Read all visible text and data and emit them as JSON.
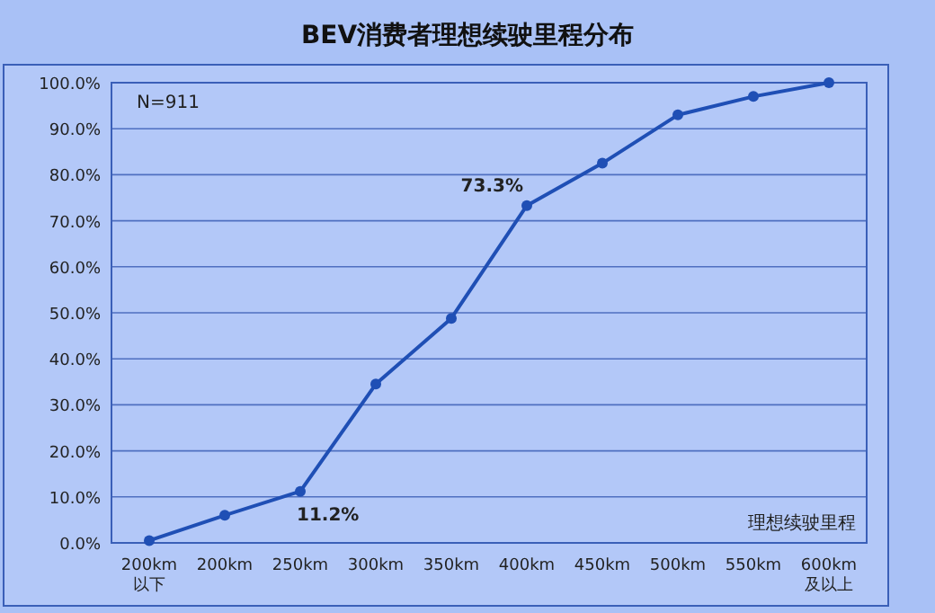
{
  "chart_data": {
    "type": "line",
    "title": "BEV消费者理想续驶里程分布",
    "xlabel": "理想续驶里程",
    "annotations": [
      "N=911"
    ],
    "categories": [
      "200km以下",
      "200km",
      "250km",
      "300km",
      "350km",
      "400km",
      "450km",
      "500km",
      "550km",
      "600km及以上"
    ],
    "series": [
      {
        "color": "#1f4fb5",
        "values": [
          0.5,
          6.0,
          11.2,
          34.5,
          48.8,
          73.3,
          82.5,
          93.0,
          97.0,
          100.0
        ],
        "value_labels": [
          null,
          null,
          "11.2%",
          null,
          null,
          "73.3%",
          null,
          null,
          null,
          null
        ]
      }
    ],
    "ylim": [
      0,
      100
    ],
    "yticks": [
      {
        "value": 0,
        "label": "0.0%"
      },
      {
        "value": 10,
        "label": "10.0%"
      },
      {
        "value": 20,
        "label": "20.0%"
      },
      {
        "value": 30,
        "label": "30.0%"
      },
      {
        "value": 40,
        "label": "40.0%"
      },
      {
        "value": 50,
        "label": "50.0%"
      },
      {
        "value": 60,
        "label": "60.0%"
      },
      {
        "value": 70,
        "label": "70.0%"
      },
      {
        "value": 80,
        "label": "80.0%"
      },
      {
        "value": 90,
        "label": "90.0%"
      },
      {
        "value": 100,
        "label": "100.0%"
      }
    ],
    "grid": "y",
    "marker": "circle"
  }
}
